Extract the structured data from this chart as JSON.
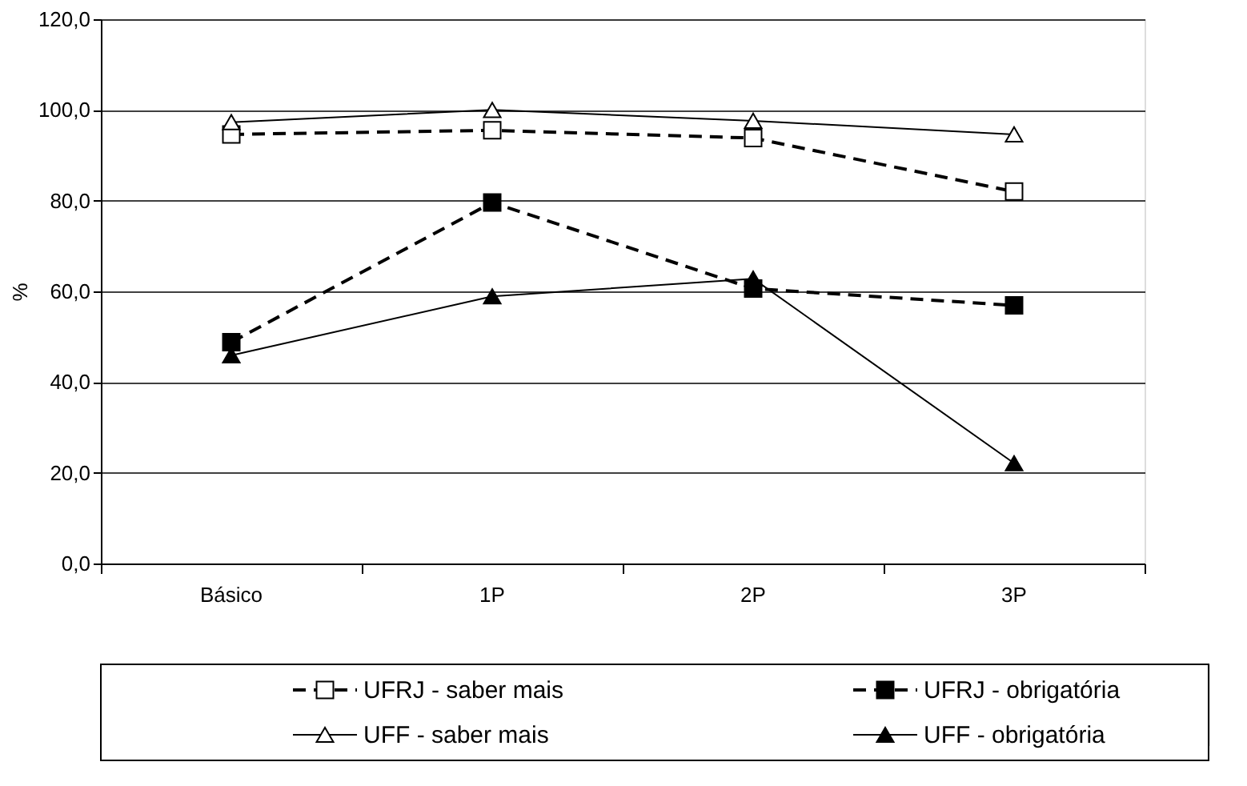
{
  "chart_data": {
    "type": "line",
    "categories": [
      "Básico",
      "1P",
      "2P",
      "3P"
    ],
    "ylabel": "%",
    "ylim": [
      0,
      120
    ],
    "yticks": [
      {
        "value": 0,
        "label": "0,0"
      },
      {
        "value": 20,
        "label": "20,0"
      },
      {
        "value": 40,
        "label": "40,0"
      },
      {
        "value": 60,
        "label": "60,0"
      },
      {
        "value": 80,
        "label": "80,0"
      },
      {
        "value": 100,
        "label": "100,0"
      },
      {
        "value": 120,
        "label": "120,0"
      }
    ],
    "grid": "y",
    "legend": "bottom",
    "series": [
      {
        "name": "UFRJ - saber mais",
        "color": "#000000",
        "values": [
          94.6,
          95.5,
          93.8,
          82.0
        ],
        "marker": "square",
        "line_style": "dashed"
      },
      {
        "name": "UFRJ - obrigatória",
        "color": "#000000",
        "values": [
          48.8,
          79.6,
          60.6,
          56.9
        ],
        "marker": "square",
        "line_style": "dashed"
      },
      {
        "name": "UFF - saber mais",
        "color": "#000000",
        "values": [
          97.3,
          100.0,
          97.6,
          94.6
        ],
        "marker": "triangle",
        "line_style": "solid"
      },
      {
        "name": "UFF - obrigatória",
        "color": "#000000",
        "values": [
          45.9,
          58.9,
          62.8,
          22.1
        ],
        "marker": "triangle",
        "line_style": "solid"
      }
    ]
  }
}
